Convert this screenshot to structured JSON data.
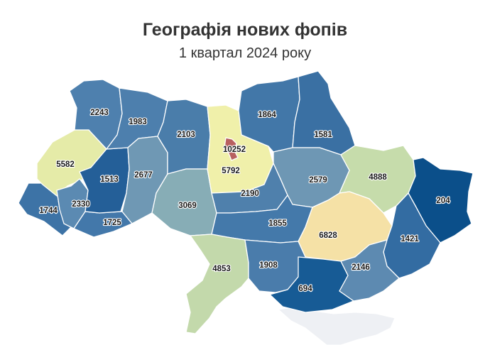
{
  "title": "Географія нових фопів",
  "subtitle": "1 квартал 2024 року",
  "colors": {
    "background": "#ffffff",
    "scale": [
      "#0b4f8a",
      "#1b5e99",
      "#3a75a8",
      "#5585b2",
      "#6a93b8",
      "#78a0ba",
      "#8fb5b8",
      "#a9c9a7",
      "#c8dbaa",
      "#e6edaa",
      "#f4e0a6",
      "#b85c5c"
    ]
  },
  "regions": [
    {
      "id": "volyn",
      "value": "2243",
      "fill": "#4e80ae"
    },
    {
      "id": "rivne",
      "value": "1983",
      "fill": "#4d7fad"
    },
    {
      "id": "zhytomyr",
      "value": "2103",
      "fill": "#4a7daa"
    },
    {
      "id": "kyiv-oblast",
      "value": "5792",
      "fill": "#f0f0aa"
    },
    {
      "id": "kyiv-city",
      "value": "10252",
      "fill": "#b86060"
    },
    {
      "id": "chernihiv",
      "value": "1864",
      "fill": "#4277a8"
    },
    {
      "id": "sumy",
      "value": "1581",
      "fill": "#3a70a3"
    },
    {
      "id": "lviv",
      "value": "5582",
      "fill": "#e5eba8"
    },
    {
      "id": "ternopil",
      "value": "1513",
      "fill": "#245f98"
    },
    {
      "id": "khmelnytskyi",
      "value": "2677",
      "fill": "#6f98b4"
    },
    {
      "id": "vinnytsia",
      "value": "3069",
      "fill": "#87adb6"
    },
    {
      "id": "cherkasy",
      "value": "2190",
      "fill": "#4f80ac"
    },
    {
      "id": "poltava",
      "value": "2579",
      "fill": "#6e97b4"
    },
    {
      "id": "kharkiv",
      "value": "4888",
      "fill": "#c6dcab"
    },
    {
      "id": "luhansk",
      "value": "204",
      "fill": "#0b4f8a"
    },
    {
      "id": "zakarpattia",
      "value": "1744",
      "fill": "#3d73a6"
    },
    {
      "id": "ivano-frankivsk",
      "value": "2330",
      "fill": "#5b8ab2"
    },
    {
      "id": "chernivtsi",
      "value": "1725",
      "fill": "#4378aa"
    },
    {
      "id": "kirovohrad",
      "value": "1855",
      "fill": "#4479aa"
    },
    {
      "id": "dnipropetrovsk",
      "value": "6828",
      "fill": "#f5e1a6"
    },
    {
      "id": "donetsk",
      "value": "1421",
      "fill": "#336ca2"
    },
    {
      "id": "odesa",
      "value": "4853",
      "fill": "#c3d9ab"
    },
    {
      "id": "mykolaiv",
      "value": "1908",
      "fill": "#4a7cab"
    },
    {
      "id": "kherson",
      "value": "694",
      "fill": "#175b95"
    },
    {
      "id": "zaporizhzhia",
      "value": "2146",
      "fill": "#5d8ab1"
    }
  ]
}
